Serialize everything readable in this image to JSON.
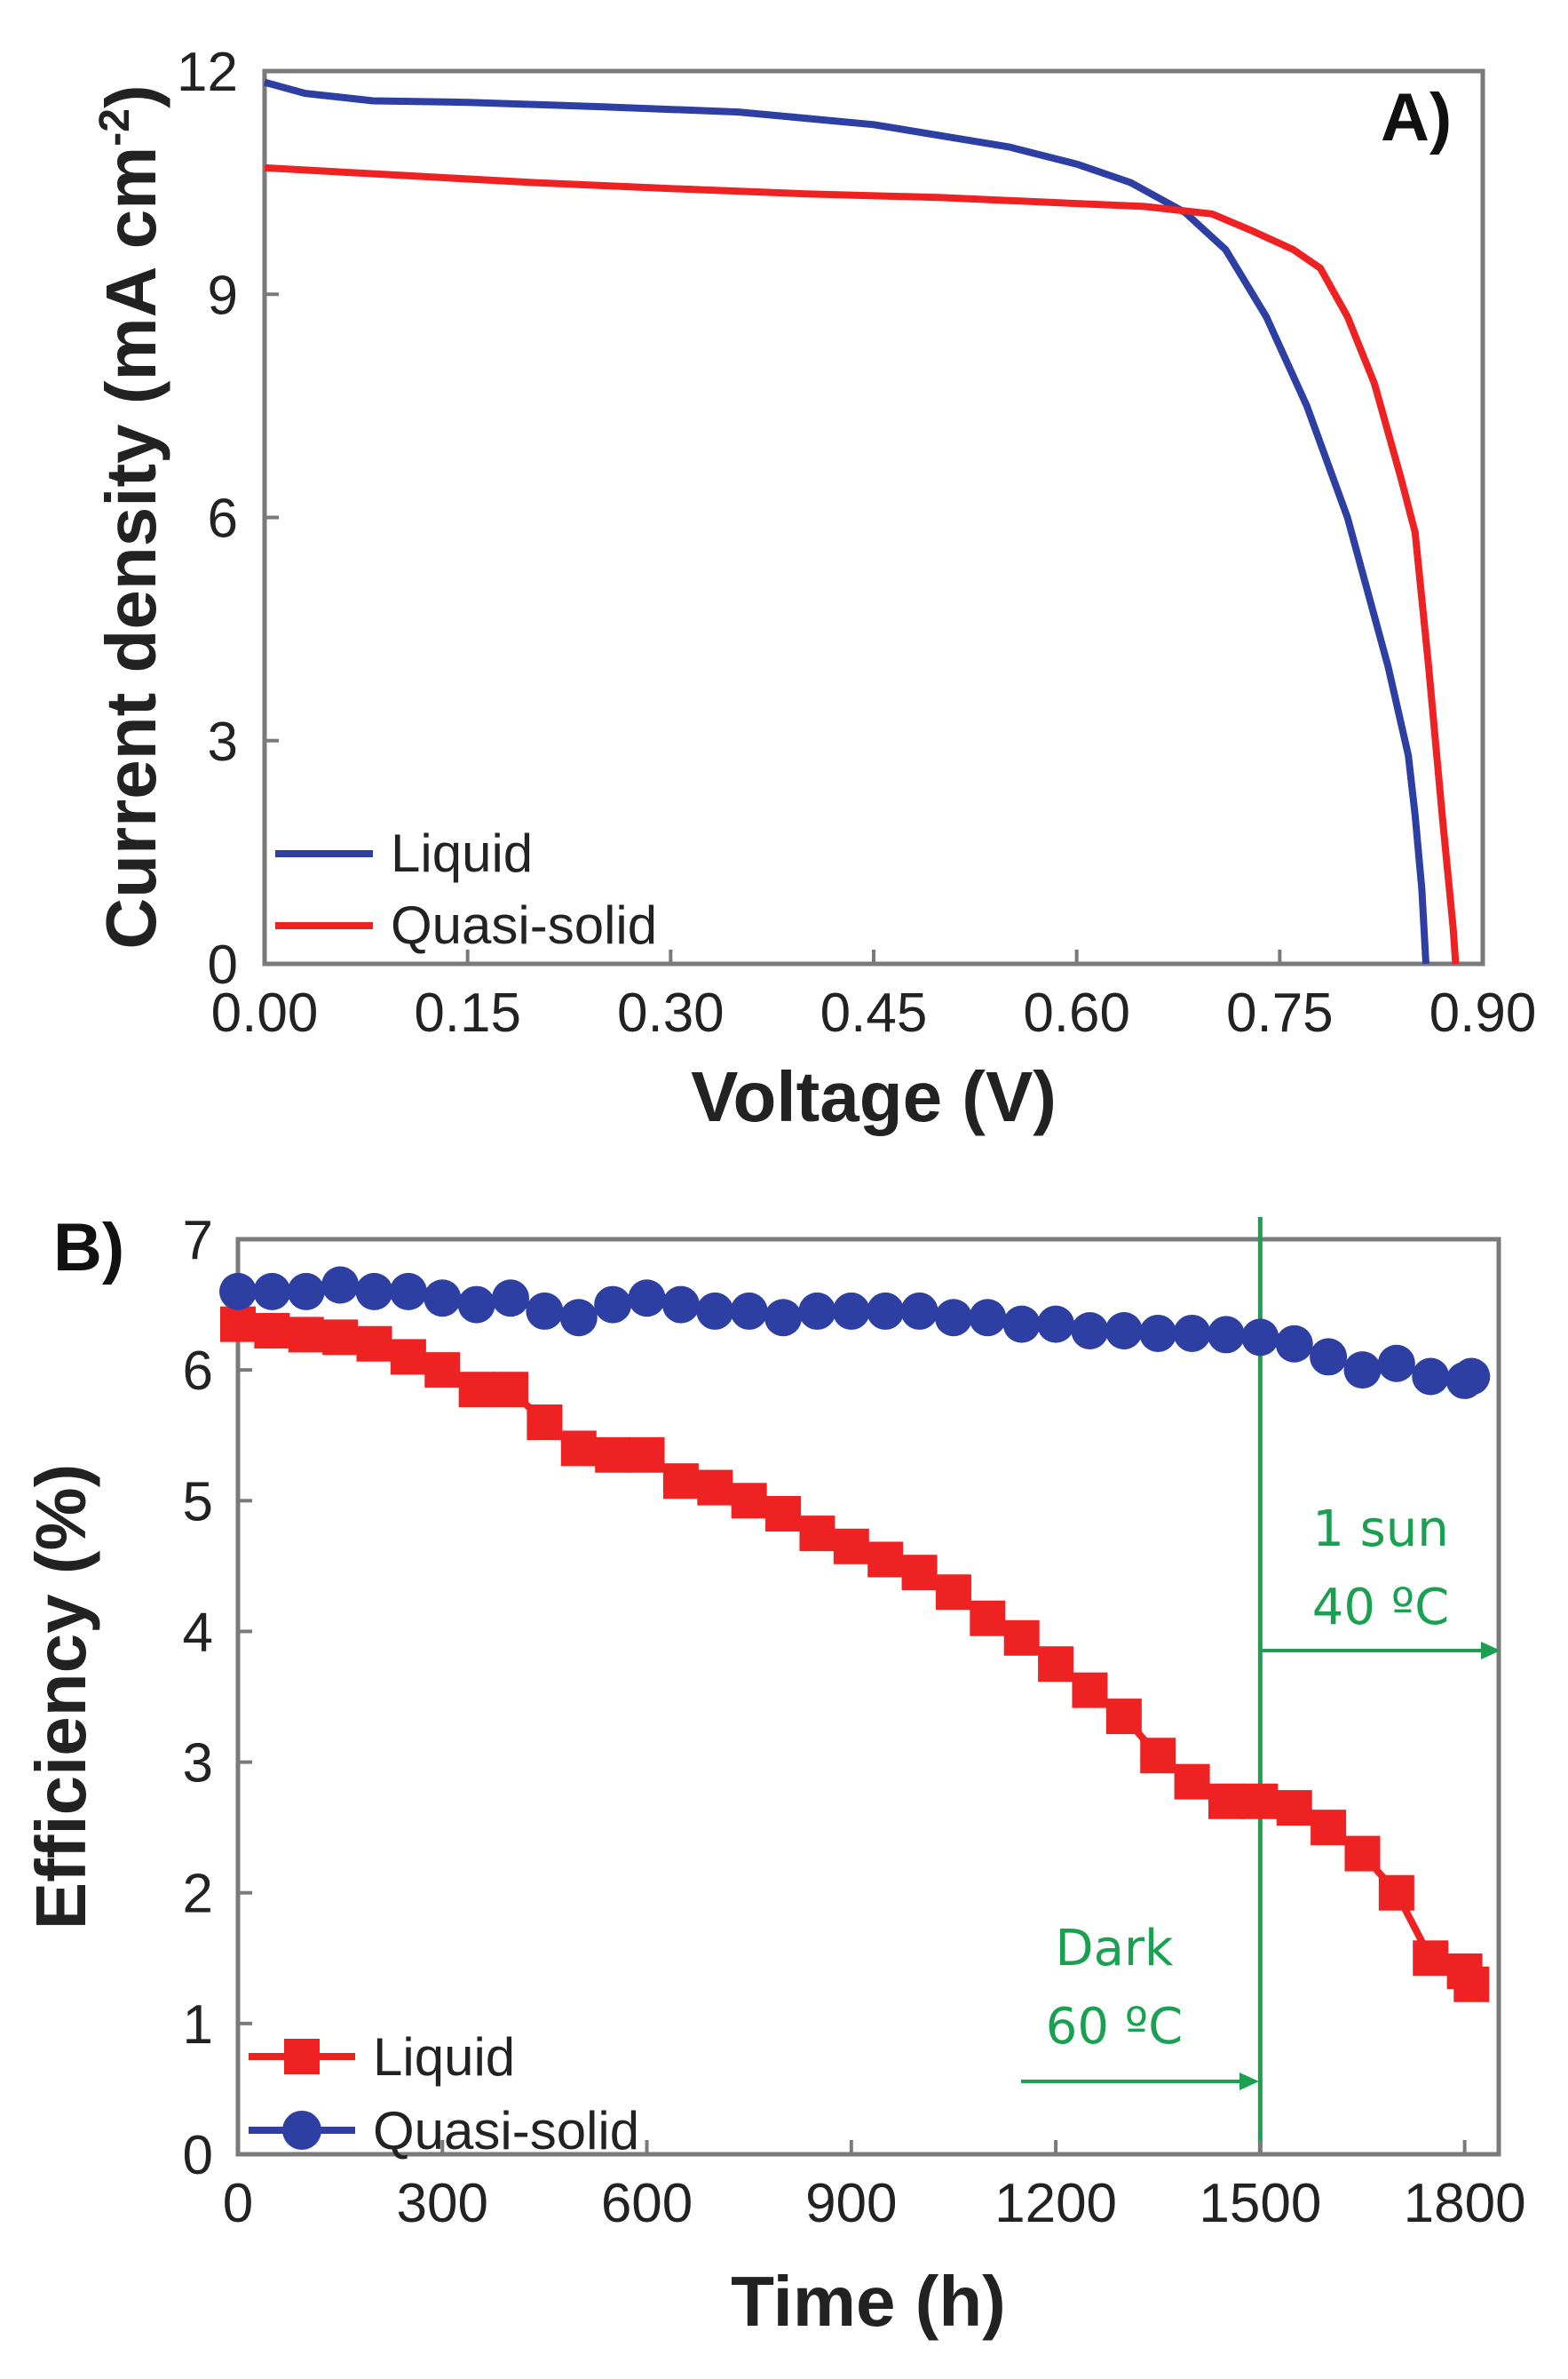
{
  "colors": {
    "blue": "#2e3fa4",
    "red": "#ee2222",
    "green": "#1aa050",
    "axis": "#7a7a7a"
  },
  "chart_data": [
    {
      "id": "A",
      "type": "line",
      "panel_label": "A)",
      "xlabel": "Voltage (V)",
      "ylabel": "Current density (mA cm",
      "ylabel_sup": "-2",
      "ylabel_close": ")",
      "xlim": [
        0,
        0.9
      ],
      "ylim": [
        0,
        12
      ],
      "xticks": [
        0,
        0.15,
        0.3,
        0.45,
        0.6,
        0.75,
        0.9
      ],
      "xtick_labels": [
        "0.00",
        "0.15",
        "0.30",
        "0.45",
        "0.60",
        "0.75",
        "0.90"
      ],
      "yticks": [
        0,
        3,
        6,
        9,
        12
      ],
      "ytick_labels": [
        "0",
        "3",
        "6",
        "9",
        "12"
      ],
      "legend_position": "bottom-left",
      "series": [
        {
          "name": "Liquid",
          "color": "#2e3fa4",
          "points": [
            [
              0,
              11.85
            ],
            [
              0.03,
              11.7
            ],
            [
              0.08,
              11.6
            ],
            [
              0.15,
              11.58
            ],
            [
              0.25,
              11.52
            ],
            [
              0.35,
              11.45
            ],
            [
              0.45,
              11.28
            ],
            [
              0.55,
              10.98
            ],
            [
              0.6,
              10.75
            ],
            [
              0.64,
              10.5
            ],
            [
              0.68,
              10.1
            ],
            [
              0.71,
              9.6
            ],
            [
              0.74,
              8.7
            ],
            [
              0.77,
              7.5
            ],
            [
              0.8,
              6.0
            ],
            [
              0.83,
              4.0
            ],
            [
              0.845,
              2.8
            ],
            [
              0.85,
              2.0
            ],
            [
              0.855,
              1.0
            ],
            [
              0.858,
              0
            ]
          ]
        },
        {
          "name": "Quasi-solid",
          "color": "#ee2222",
          "points": [
            [
              0,
              10.7
            ],
            [
              0.1,
              10.6
            ],
            [
              0.2,
              10.5
            ],
            [
              0.3,
              10.42
            ],
            [
              0.4,
              10.35
            ],
            [
              0.5,
              10.3
            ],
            [
              0.6,
              10.22
            ],
            [
              0.65,
              10.18
            ],
            [
              0.7,
              10.08
            ],
            [
              0.73,
              9.85
            ],
            [
              0.76,
              9.6
            ],
            [
              0.78,
              9.35
            ],
            [
              0.8,
              8.7
            ],
            [
              0.82,
              7.8
            ],
            [
              0.84,
              6.5
            ],
            [
              0.85,
              5.8
            ],
            [
              0.86,
              4.0
            ],
            [
              0.87,
              2.0
            ],
            [
              0.878,
              0.5
            ],
            [
              0.88,
              0
            ]
          ]
        }
      ]
    },
    {
      "id": "B",
      "type": "line",
      "panel_label": "B)",
      "xlabel": "Time (h)",
      "ylabel": "Efficiency (%)",
      "xlim": [
        0,
        1850
      ],
      "ylim": [
        0,
        7
      ],
      "xticks": [
        0,
        300,
        600,
        900,
        1200,
        1500,
        1800
      ],
      "xtick_labels": [
        "0",
        "300",
        "600",
        "900",
        "1200",
        "1500",
        "1800"
      ],
      "yticks": [
        0,
        1,
        2,
        3,
        4,
        5,
        6,
        7
      ],
      "ytick_labels": [
        "0",
        "1",
        "2",
        "3",
        "4",
        "5",
        "6",
        "7"
      ],
      "legend_position": "bottom-left",
      "vline_x": 1500,
      "annotations": [
        {
          "line1": "Dark",
          "line2": "60 ºC"
        },
        {
          "line1": "1 sun",
          "line2": "40 ºC"
        }
      ],
      "series": [
        {
          "name": "Liquid",
          "marker": "square",
          "color": "#ee2222",
          "points": [
            [
              0,
              6.35
            ],
            [
              50,
              6.3
            ],
            [
              100,
              6.27
            ],
            [
              150,
              6.25
            ],
            [
              200,
              6.2
            ],
            [
              250,
              6.1
            ],
            [
              300,
              6.0
            ],
            [
              350,
              5.85
            ],
            [
              400,
              5.85
            ],
            [
              450,
              5.6
            ],
            [
              500,
              5.4
            ],
            [
              550,
              5.35
            ],
            [
              600,
              5.35
            ],
            [
              650,
              5.15
            ],
            [
              700,
              5.1
            ],
            [
              750,
              5.0
            ],
            [
              800,
              4.9
            ],
            [
              850,
              4.75
            ],
            [
              900,
              4.65
            ],
            [
              950,
              4.55
            ],
            [
              1000,
              4.45
            ],
            [
              1050,
              4.3
            ],
            [
              1100,
              4.1
            ],
            [
              1150,
              3.95
            ],
            [
              1200,
              3.75
            ],
            [
              1250,
              3.55
            ],
            [
              1300,
              3.35
            ],
            [
              1350,
              3.05
            ],
            [
              1400,
              2.85
            ],
            [
              1450,
              2.7
            ],
            [
              1500,
              2.7
            ],
            [
              1550,
              2.65
            ],
            [
              1600,
              2.5
            ],
            [
              1650,
              2.3
            ],
            [
              1700,
              2.0
            ],
            [
              1750,
              1.5
            ],
            [
              1800,
              1.4
            ],
            [
              1810,
              1.3
            ]
          ]
        },
        {
          "name": "Quasi-solid",
          "marker": "circle",
          "color": "#2e3fa4",
          "points": [
            [
              0,
              6.6
            ],
            [
              50,
              6.6
            ],
            [
              100,
              6.6
            ],
            [
              150,
              6.65
            ],
            [
              200,
              6.6
            ],
            [
              250,
              6.6
            ],
            [
              300,
              6.55
            ],
            [
              350,
              6.5
            ],
            [
              400,
              6.55
            ],
            [
              450,
              6.45
            ],
            [
              500,
              6.4
            ],
            [
              550,
              6.5
            ],
            [
              600,
              6.55
            ],
            [
              650,
              6.5
            ],
            [
              700,
              6.45
            ],
            [
              750,
              6.45
            ],
            [
              800,
              6.4
            ],
            [
              850,
              6.45
            ],
            [
              900,
              6.45
            ],
            [
              950,
              6.45
            ],
            [
              1000,
              6.45
            ],
            [
              1050,
              6.4
            ],
            [
              1100,
              6.4
            ],
            [
              1150,
              6.35
            ],
            [
              1200,
              6.35
            ],
            [
              1250,
              6.3
            ],
            [
              1300,
              6.3
            ],
            [
              1350,
              6.28
            ],
            [
              1400,
              6.28
            ],
            [
              1450,
              6.27
            ],
            [
              1500,
              6.25
            ],
            [
              1550,
              6.2
            ],
            [
              1600,
              6.1
            ],
            [
              1650,
              6.0
            ],
            [
              1700,
              6.05
            ],
            [
              1750,
              5.95
            ],
            [
              1800,
              5.92
            ],
            [
              1810,
              5.95
            ]
          ]
        }
      ]
    }
  ]
}
